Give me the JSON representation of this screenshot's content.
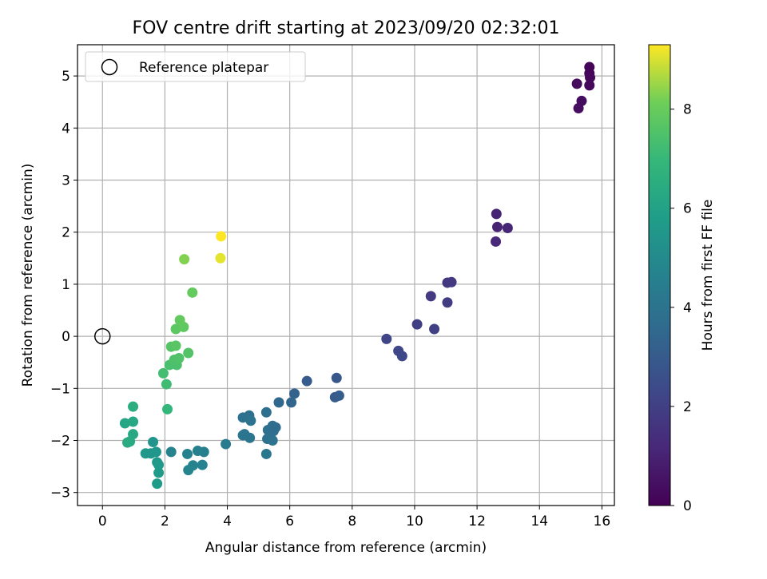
{
  "chart_data": {
    "type": "scatter",
    "title": "FOV centre drift starting at 2023/09/20 02:32:01",
    "xlabel": "Angular distance from reference (arcmin)",
    "ylabel": "Rotation from reference (arcmin)",
    "xlim": [
      -0.8,
      16.4
    ],
    "ylim": [
      -3.25,
      5.6
    ],
    "xticks": [
      0,
      2,
      4,
      6,
      8,
      10,
      12,
      14,
      16
    ],
    "yticks": [
      -3,
      -2,
      -1,
      0,
      1,
      2,
      3,
      4,
      5
    ],
    "grid": true,
    "legend": {
      "placement": "top-left",
      "entries": [
        "Reference platepar"
      ]
    },
    "reference_point": {
      "x": 0,
      "y": 0,
      "label": "Reference platepar"
    },
    "colorbar": {
      "label": "Hours from first FF file",
      "colormap": "viridis",
      "range": [
        0,
        9.3
      ],
      "ticks": [
        0,
        2,
        4,
        6,
        8
      ]
    },
    "series": [
      {
        "points": [
          [
            15.6,
            5.17,
            0.1
          ],
          [
            15.6,
            5.05,
            0.15
          ],
          [
            15.62,
            4.97,
            0.2
          ],
          [
            15.6,
            4.82,
            0.25
          ],
          [
            15.2,
            4.85,
            0.3
          ],
          [
            15.35,
            4.52,
            0.35
          ],
          [
            15.25,
            4.38,
            0.4
          ],
          [
            12.62,
            2.35,
            1.0
          ],
          [
            12.65,
            2.1,
            1.05
          ],
          [
            12.98,
            2.08,
            1.1
          ],
          [
            12.6,
            1.82,
            1.15
          ],
          [
            11.05,
            1.03,
            1.7
          ],
          [
            11.18,
            1.04,
            1.75
          ],
          [
            10.52,
            0.77,
            1.8
          ],
          [
            11.05,
            0.65,
            1.85
          ],
          [
            10.08,
            0.23,
            1.95
          ],
          [
            10.63,
            0.14,
            2.0
          ],
          [
            9.1,
            -0.05,
            2.2
          ],
          [
            9.48,
            -0.28,
            2.25
          ],
          [
            9.6,
            -0.38,
            2.3
          ],
          [
            7.5,
            -0.8,
            2.9
          ],
          [
            6.55,
            -0.86,
            3.0
          ],
          [
            7.45,
            -1.17,
            3.05
          ],
          [
            7.58,
            -1.14,
            3.1
          ],
          [
            6.15,
            -1.1,
            3.3
          ],
          [
            5.65,
            -1.27,
            3.5
          ],
          [
            6.05,
            -1.27,
            3.45
          ],
          [
            5.25,
            -1.46,
            3.8
          ],
          [
            4.7,
            -1.52,
            3.85
          ],
          [
            4.5,
            -1.56,
            3.9
          ],
          [
            4.75,
            -1.62,
            3.95
          ],
          [
            5.45,
            -1.72,
            3.8
          ],
          [
            5.3,
            -1.8,
            3.85
          ],
          [
            5.48,
            -1.82,
            3.75
          ],
          [
            5.55,
            -1.75,
            3.7
          ],
          [
            4.55,
            -1.88,
            4.0
          ],
          [
            4.5,
            -1.9,
            4.05
          ],
          [
            4.72,
            -1.95,
            4.1
          ],
          [
            5.28,
            -1.97,
            3.9
          ],
          [
            5.45,
            -2.0,
            3.95
          ],
          [
            3.95,
            -2.07,
            4.4
          ],
          [
            5.25,
            -2.26,
            4.2
          ],
          [
            3.25,
            -2.22,
            4.5
          ],
          [
            3.05,
            -2.2,
            4.55
          ],
          [
            2.72,
            -2.26,
            4.6
          ],
          [
            2.2,
            -2.22,
            4.7
          ],
          [
            3.2,
            -2.47,
            4.65
          ],
          [
            2.9,
            -2.48,
            4.7
          ],
          [
            2.75,
            -2.57,
            4.75
          ],
          [
            1.55,
            -2.25,
            5.5
          ],
          [
            1.38,
            -2.25,
            5.55
          ],
          [
            1.72,
            -2.22,
            5.5
          ],
          [
            1.62,
            -2.03,
            5.4
          ],
          [
            1.75,
            -2.42,
            5.6
          ],
          [
            1.8,
            -2.47,
            5.65
          ],
          [
            1.8,
            -2.62,
            5.7
          ],
          [
            1.75,
            -2.83,
            5.75
          ],
          [
            0.72,
            -1.67,
            6.2
          ],
          [
            0.98,
            -1.64,
            6.25
          ],
          [
            0.98,
            -1.88,
            6.3
          ],
          [
            0.88,
            -2.02,
            6.35
          ],
          [
            0.8,
            -2.04,
            6.4
          ],
          [
            0.98,
            -1.35,
            6.5
          ],
          [
            2.08,
            -1.4,
            6.9
          ],
          [
            2.05,
            -0.92,
            7.2
          ],
          [
            1.95,
            -0.71,
            7.3
          ],
          [
            2.15,
            -0.55,
            7.4
          ],
          [
            2.38,
            -0.55,
            7.45
          ],
          [
            2.3,
            -0.45,
            7.5
          ],
          [
            2.45,
            -0.42,
            7.55
          ],
          [
            2.75,
            -0.32,
            7.6
          ],
          [
            2.2,
            -0.2,
            7.65
          ],
          [
            2.35,
            -0.18,
            7.7
          ],
          [
            2.35,
            0.14,
            7.8
          ],
          [
            2.6,
            0.18,
            7.85
          ],
          [
            2.48,
            0.31,
            7.9
          ],
          [
            2.88,
            0.84,
            7.95
          ],
          [
            2.62,
            1.48,
            8.3
          ],
          [
            3.78,
            1.5,
            9.1
          ],
          [
            3.8,
            1.92,
            9.3
          ]
        ]
      }
    ]
  }
}
